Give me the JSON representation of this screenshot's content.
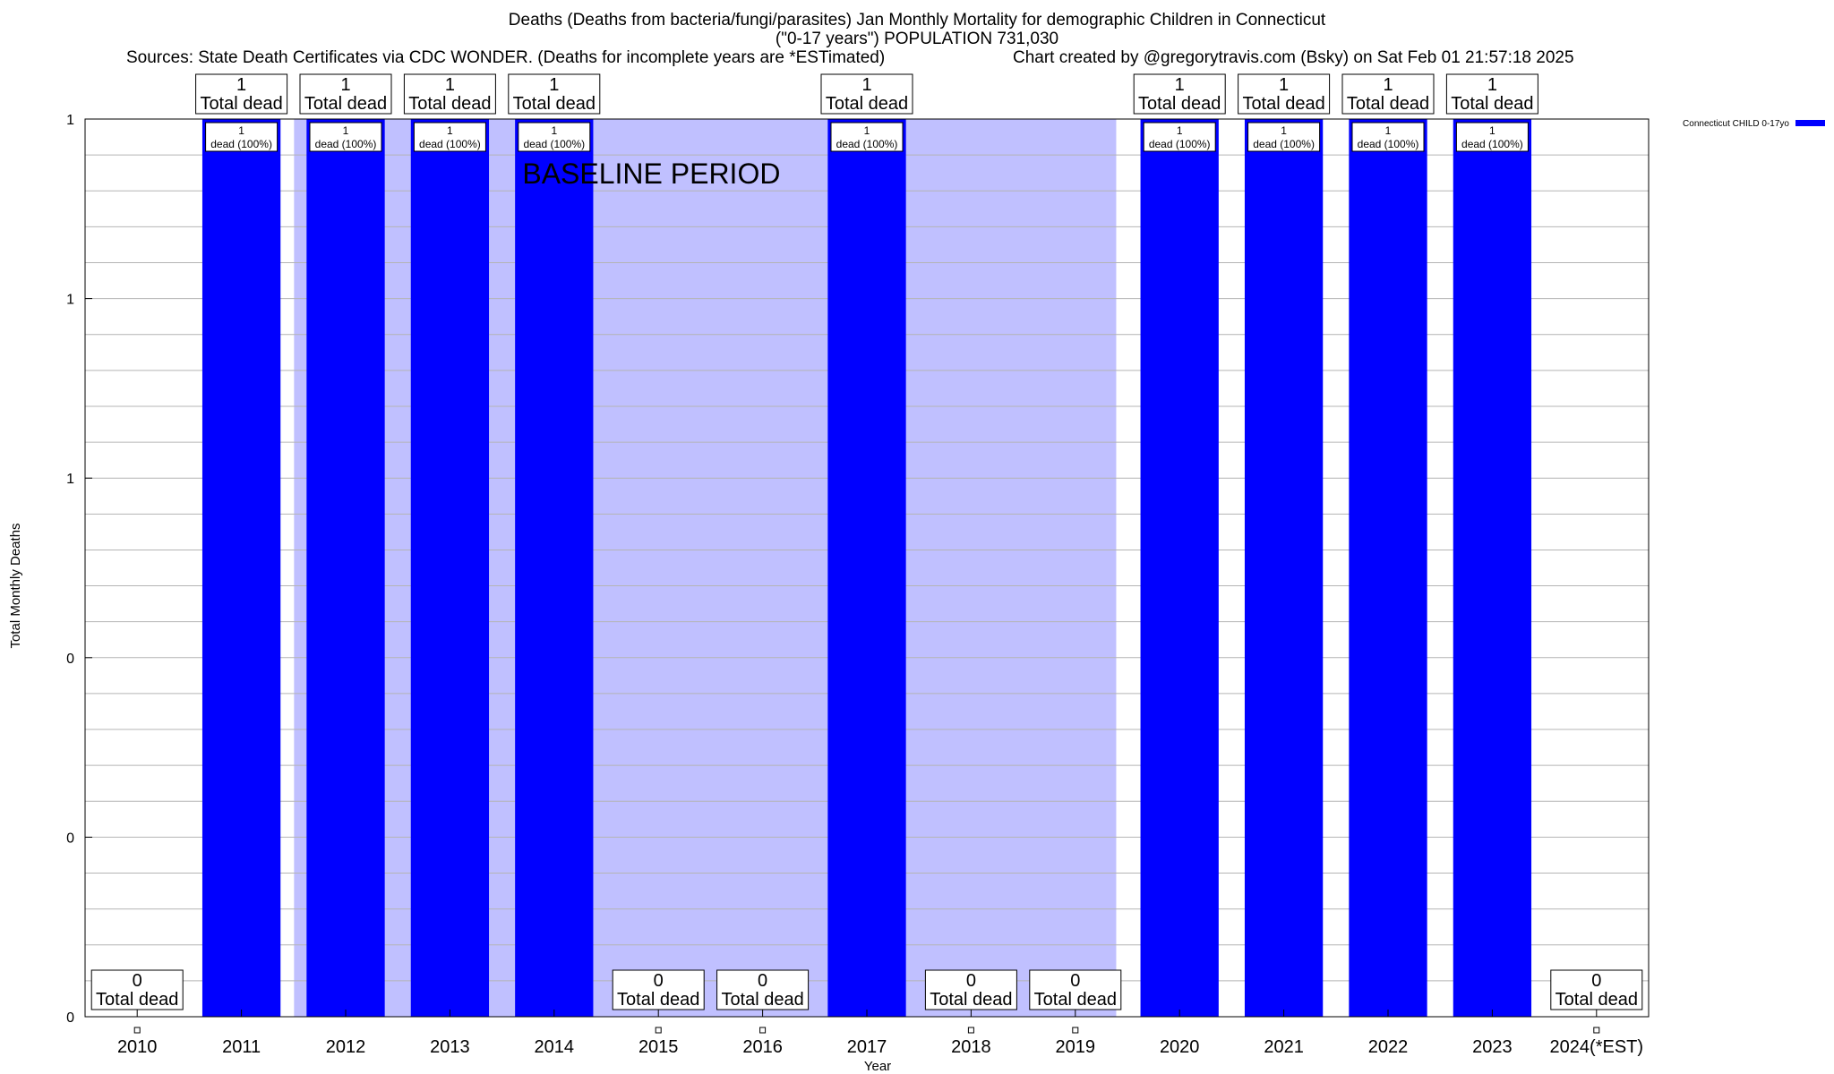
{
  "title_lines": [
    "Deaths (Deaths from bacteria/fungi/parasites) Jan Monthly Mortality for demographic Children in Connecticut",
    "(\"0-17 years\") POPULATION 731,030"
  ],
  "sources": "Sources: State Death Certificates via CDC WONDER. (Deaths for incomplete years are *ESTimated)",
  "credit": "Chart created by @gregorytravis.com (Bsky) on Sat Feb 01 21:57:18 2025",
  "chart_data": {
    "type": "bar",
    "categories": [
      "2010",
      "2011",
      "2012",
      "2013",
      "2014",
      "2015",
      "2016",
      "2017",
      "2018",
      "2019",
      "2020",
      "2021",
      "2022",
      "2023",
      "2024(*EST)"
    ],
    "series": [
      {
        "name": "Connecticut CHILD 0-17yo",
        "values": [
          0,
          1,
          1,
          1,
          1,
          0,
          0,
          1,
          0,
          0,
          1,
          1,
          1,
          1,
          0
        ]
      }
    ],
    "total_label": "Total dead",
    "bar_label": "dead (100%)",
    "xlabel": "Year",
    "ylabel": "Total Monthly Deaths",
    "ylim": [
      0,
      1
    ],
    "y_tick_labels": [
      "0",
      "0",
      "0",
      "1",
      "1",
      "1"
    ],
    "baseline": {
      "label": "BASELINE PERIOD",
      "start": "2012",
      "end": "2019",
      "color": "#c0c0ff"
    },
    "bar_color": "#0000ff",
    "grid": true,
    "legend_position": "top-right"
  }
}
